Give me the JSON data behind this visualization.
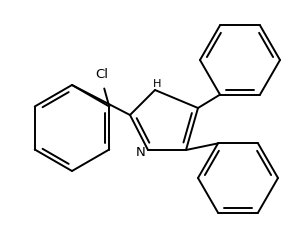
{
  "bg_color": "#ffffff",
  "line_color": "#000000",
  "line_width": 1.4,
  "font_size": 9.5,
  "figsize": [
    3.0,
    2.27
  ],
  "dpi": 100,
  "xlim": [
    0,
    300
  ],
  "ylim": [
    0,
    227
  ]
}
